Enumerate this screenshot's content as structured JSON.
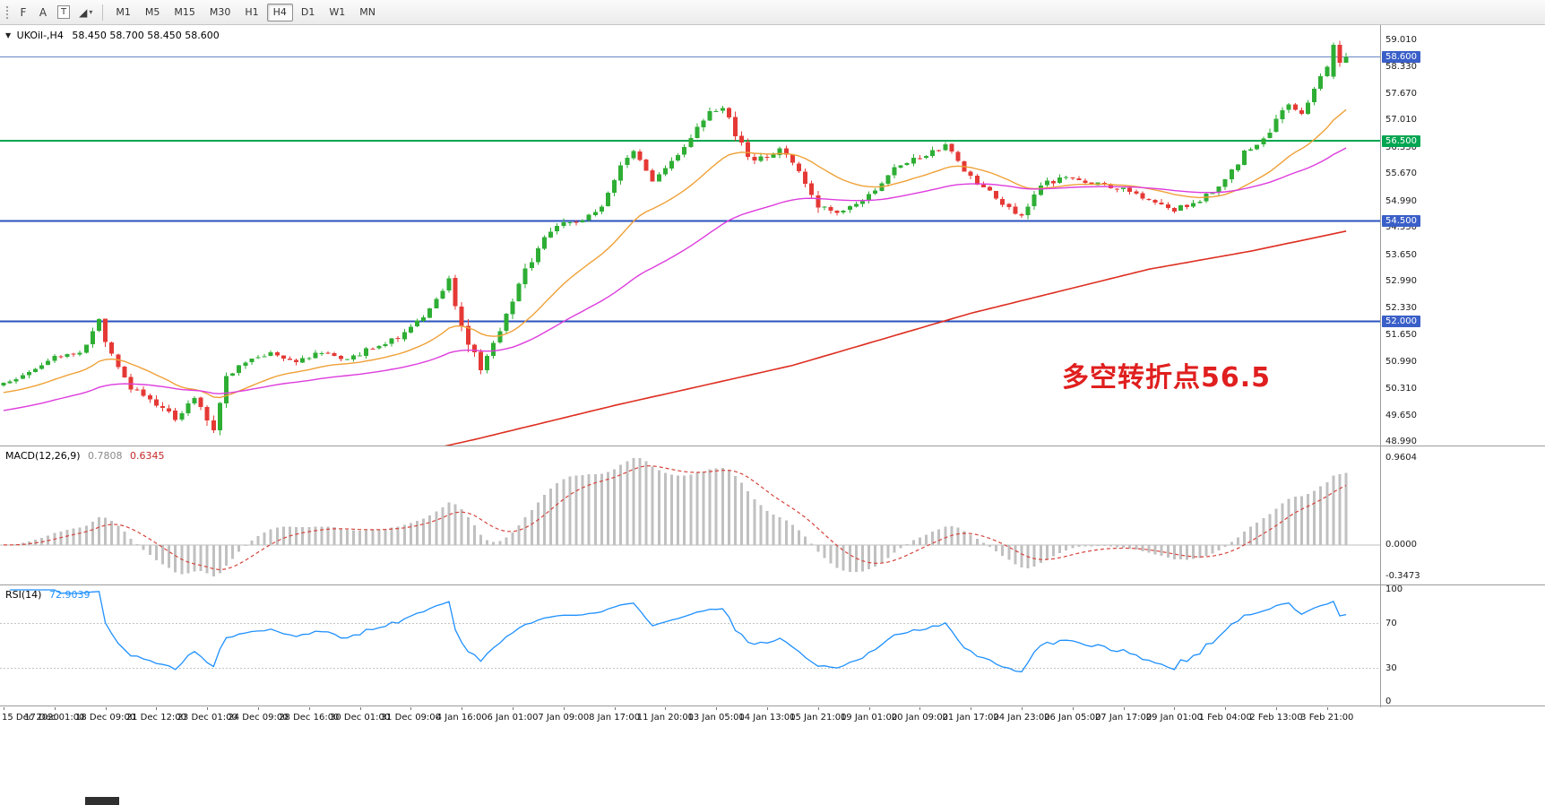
{
  "toolbar": {
    "caret_glyph": "▾",
    "tools": [
      {
        "name": "fibonacci-tool",
        "glyph": "F",
        "boxed": false,
        "caret": false
      },
      {
        "name": "text-tool",
        "glyph": "A",
        "boxed": false,
        "caret": false
      },
      {
        "name": "text-label-tool",
        "glyph": "T",
        "boxed": true,
        "caret": false
      },
      {
        "name": "arrows-tool",
        "glyph": "◢",
        "boxed": false,
        "caret": true
      }
    ],
    "timeframes": [
      {
        "label": "M1",
        "active": false
      },
      {
        "label": "M5",
        "active": false
      },
      {
        "label": "M15",
        "active": false
      },
      {
        "label": "M30",
        "active": false
      },
      {
        "label": "H1",
        "active": false
      },
      {
        "label": "H4",
        "active": true
      },
      {
        "label": "D1",
        "active": false
      },
      {
        "label": "W1",
        "active": false
      },
      {
        "label": "MN",
        "active": false
      }
    ]
  },
  "chart": {
    "expand_glyph": "▼",
    "symbol_header": "UKOil-,H4",
    "ohlc_text": "58.450 58.700 58.450 58.600",
    "annotation": {
      "text": "多空转折点56.5",
      "color": "#e01f1f"
    },
    "price_ticks": [
      "59.010",
      "58.330",
      "57.670",
      "57.010",
      "56.330",
      "55.670",
      "54.990",
      "54.330",
      "53.650",
      "52.990",
      "52.330",
      "51.650",
      "50.990",
      "50.310",
      "49.650",
      "48.990"
    ],
    "price_tags": [
      {
        "value": "58.600",
        "color": "#3a5fc8"
      },
      {
        "value": "56.500",
        "color": "#00a651"
      },
      {
        "value": "54.500",
        "color": "#3a5fc8"
      },
      {
        "value": "52.000",
        "color": "#3a5fc8"
      }
    ],
    "time_labels": [
      {
        "idx": 0,
        "text": "15 Dec 2020"
      },
      {
        "idx": 8,
        "text": "17 Dec 01:00"
      },
      {
        "idx": 16,
        "text": "18 Dec 09:00"
      },
      {
        "idx": 24,
        "text": "21 Dec 12:00"
      },
      {
        "idx": 32,
        "text": "23 Dec 01:00"
      },
      {
        "idx": 40,
        "text": "24 Dec 09:00"
      },
      {
        "idx": 48,
        "text": "28 Dec 16:00"
      },
      {
        "idx": 56,
        "text": "30 Dec 01:00"
      },
      {
        "idx": 64,
        "text": "31 Dec 09:00"
      },
      {
        "idx": 72,
        "text": "4 Jan 16:00"
      },
      {
        "idx": 80,
        "text": "6 Jan 01:00"
      },
      {
        "idx": 88,
        "text": "7 Jan 09:00"
      },
      {
        "idx": 96,
        "text": "8 Jan 17:00"
      },
      {
        "idx": 104,
        "text": "11 Jan 20:00"
      },
      {
        "idx": 112,
        "text": "13 Jan 05:00"
      },
      {
        "idx": 120,
        "text": "14 Jan 13:00"
      },
      {
        "idx": 128,
        "text": "15 Jan 21:00"
      },
      {
        "idx": 136,
        "text": "19 Jan 01:00"
      },
      {
        "idx": 144,
        "text": "20 Jan 09:00"
      },
      {
        "idx": 152,
        "text": "21 Jan 17:00"
      },
      {
        "idx": 160,
        "text": "24 Jan 23:00"
      },
      {
        "idx": 168,
        "text": "26 Jan 05:00"
      },
      {
        "idx": 176,
        "text": "27 Jan 17:00"
      },
      {
        "idx": 184,
        "text": "29 Jan 01:00"
      },
      {
        "idx": 192,
        "text": "1 Feb 04:00"
      },
      {
        "idx": 200,
        "text": "2 Feb 13:00"
      },
      {
        "idx": 208,
        "text": "3 Feb 21:00"
      }
    ]
  },
  "macd": {
    "label": "MACD(12,26,9)",
    "value_main": "0.7808",
    "value_signal": "0.6345",
    "axis": [
      "0.9604",
      "0.0000",
      "-0.3473"
    ],
    "histogram_color": "#c0c0c0",
    "signal_color": "#d5443c"
  },
  "rsi": {
    "label": "RSI(14)",
    "value": "72.9039",
    "axis": [
      "100",
      "70",
      "30",
      "0"
    ],
    "levels": [
      70,
      30
    ],
    "level_color": "#c4c4c4",
    "line_color": "#1e90ff"
  },
  "chart_data": {
    "type": "candlestick",
    "symbol": "UKOil-",
    "timeframe": "H4",
    "current_bar": {
      "open": 58.45,
      "high": 58.7,
      "low": 58.45,
      "close": 58.6
    },
    "candle_count": 212,
    "ylim": [
      48.901,
      59.39
    ],
    "bull_color": "#2eae34",
    "bear_color": "#e53935",
    "price_anchors": [
      [
        0,
        50.45,
        0.12
      ],
      [
        4,
        50.75,
        0.12
      ],
      [
        8,
        51.1,
        0.1
      ],
      [
        12,
        51.2,
        0.1
      ],
      [
        15,
        52.0,
        0.18
      ],
      [
        17,
        51.1,
        0.2
      ],
      [
        20,
        50.3,
        0.15
      ],
      [
        24,
        49.95,
        0.15
      ],
      [
        27,
        49.6,
        0.15
      ],
      [
        30,
        50.05,
        0.15
      ],
      [
        33,
        49.35,
        0.2
      ],
      [
        35,
        50.6,
        0.2
      ],
      [
        38,
        51.0,
        0.12
      ],
      [
        42,
        51.2,
        0.1
      ],
      [
        46,
        50.95,
        0.1
      ],
      [
        50,
        51.25,
        0.1
      ],
      [
        54,
        51.05,
        0.1
      ],
      [
        58,
        51.35,
        0.1
      ],
      [
        62,
        51.6,
        0.1
      ],
      [
        66,
        52.1,
        0.12
      ],
      [
        70,
        53.0,
        0.15
      ],
      [
        73,
        51.4,
        0.25
      ],
      [
        75,
        50.85,
        0.18
      ],
      [
        78,
        51.8,
        0.15
      ],
      [
        81,
        52.9,
        0.18
      ],
      [
        84,
        53.9,
        0.18
      ],
      [
        87,
        54.45,
        0.15
      ],
      [
        91,
        54.55,
        0.1
      ],
      [
        94,
        54.9,
        0.12
      ],
      [
        97,
        55.9,
        0.15
      ],
      [
        99,
        56.25,
        0.12
      ],
      [
        102,
        55.45,
        0.15
      ],
      [
        105,
        56.0,
        0.12
      ],
      [
        108,
        56.6,
        0.12
      ],
      [
        111,
        57.2,
        0.15
      ],
      [
        113,
        57.4,
        0.18
      ],
      [
        115,
        56.6,
        0.18
      ],
      [
        118,
        55.95,
        0.15
      ],
      [
        122,
        56.3,
        0.12
      ],
      [
        125,
        55.8,
        0.12
      ],
      [
        128,
        54.85,
        0.18
      ],
      [
        131,
        54.65,
        0.12
      ],
      [
        134,
        54.95,
        0.1
      ],
      [
        137,
        55.2,
        0.12
      ],
      [
        140,
        55.8,
        0.12
      ],
      [
        144,
        56.1,
        0.12
      ],
      [
        148,
        56.4,
        0.12
      ],
      [
        150,
        55.95,
        0.12
      ],
      [
        153,
        55.45,
        0.12
      ],
      [
        157,
        54.95,
        0.12
      ],
      [
        160,
        54.6,
        0.15
      ],
      [
        163,
        55.4,
        0.12
      ],
      [
        167,
        55.6,
        0.1
      ],
      [
        171,
        55.45,
        0.1
      ],
      [
        176,
        55.3,
        0.1
      ],
      [
        180,
        55.0,
        0.1
      ],
      [
        184,
        54.8,
        0.12
      ],
      [
        188,
        55.0,
        0.1
      ],
      [
        192,
        55.5,
        0.12
      ],
      [
        195,
        56.2,
        0.12
      ],
      [
        198,
        56.5,
        0.12
      ],
      [
        200,
        57.0,
        0.15
      ],
      [
        202,
        57.4,
        0.15
      ],
      [
        204,
        57.15,
        0.12
      ],
      [
        206,
        57.8,
        0.15
      ],
      [
        208,
        58.3,
        0.15
      ],
      [
        210,
        58.9,
        0.12
      ],
      [
        211,
        58.6,
        0.08
      ]
    ],
    "forced_candles": {
      "209": [
        58.1,
        58.95,
        58.05,
        58.9
      ],
      "210": [
        58.9,
        59.0,
        58.35,
        58.45
      ],
      "211": [
        58.45,
        58.7,
        58.45,
        58.6
      ]
    },
    "series": [
      {
        "name": "ma-fast",
        "type": "ema",
        "period": 21,
        "seed": 50.2,
        "color": "#efa036"
      },
      {
        "name": "ma-mid",
        "type": "ema",
        "period": 55,
        "seed": 49.75,
        "color": "#dd3cdd"
      },
      {
        "name": "ma-slow",
        "type": "anchors",
        "color": "#dd2e20",
        "anchors": [
          [
            64,
            48.7
          ],
          [
            74,
            49.05
          ],
          [
            96,
            49.9
          ],
          [
            124,
            50.9
          ],
          [
            152,
            52.2
          ],
          [
            180,
            53.3
          ],
          [
            196,
            53.75
          ],
          [
            211,
            54.25
          ]
        ]
      }
    ],
    "hlines": [
      {
        "name": "bid-price-line",
        "price": 58.6,
        "color": "#6b84c4",
        "width": 1
      },
      {
        "name": "resistance-line-56-5",
        "price": 56.5,
        "color": "#00a651",
        "width": 2
      },
      {
        "name": "support-line-54-5",
        "price": 54.5,
        "color": "#2a52be",
        "width": 2
      },
      {
        "name": "support-line-52-0",
        "price": 52.0,
        "color": "#2a52be",
        "width": 2
      }
    ],
    "macd_params": [
      12,
      26,
      9
    ],
    "macd_range": [
      -0.3473,
      0.9604
    ],
    "rsi_period": 14
  }
}
